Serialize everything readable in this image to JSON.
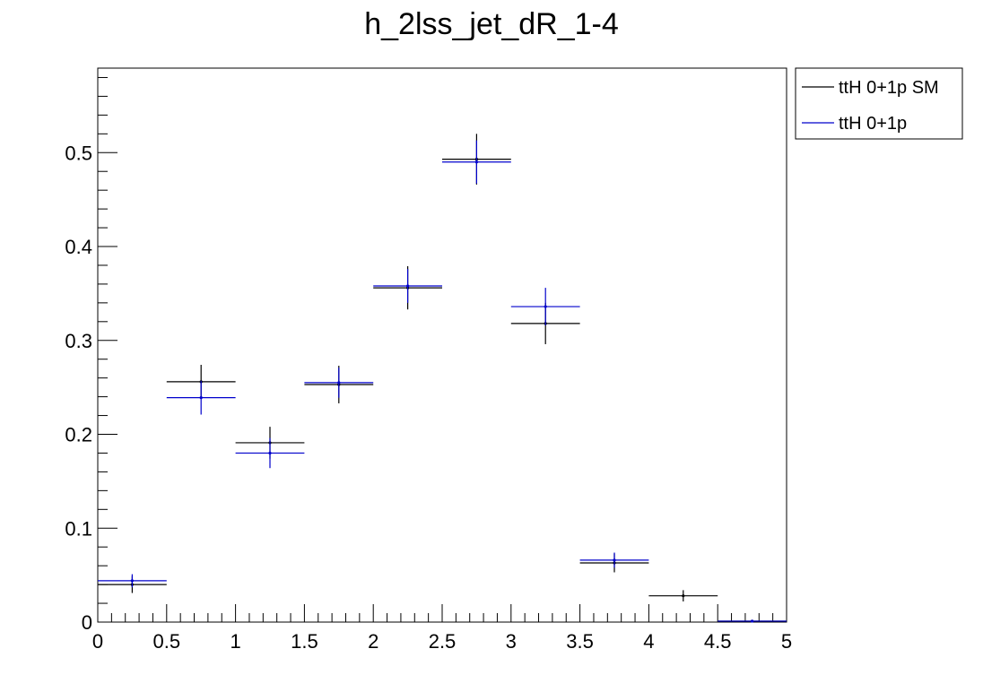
{
  "chart_data": {
    "type": "scatter",
    "title": "h_2lss_jet_dR_1-4",
    "xlabel": "",
    "ylabel": "",
    "xlim": [
      0,
      5
    ],
    "ylim": [
      0,
      0.59
    ],
    "x_major_ticks": [
      0,
      0.5,
      1,
      1.5,
      2,
      2.5,
      3,
      3.5,
      4,
      4.5,
      5
    ],
    "x_tick_labels": [
      "0",
      "0.5",
      "1",
      "1.5",
      "2",
      "2.5",
      "3",
      "3.5",
      "4",
      "4.5",
      "5"
    ],
    "y_major_ticks": [
      0,
      0.1,
      0.2,
      0.3,
      0.4,
      0.5
    ],
    "y_tick_labels": [
      "0",
      "0.1",
      "0.2",
      "0.3",
      "0.4",
      "0.5"
    ],
    "bin_width": 0.5,
    "grid": false,
    "legend_position": "top-right, outside plot",
    "series": [
      {
        "name": "ttH 0+1p SM",
        "color": "#000000",
        "x": [
          0.25,
          0.75,
          1.25,
          1.75,
          2.25,
          2.75,
          3.25,
          3.75,
          4.25,
          4.75
        ],
        "values": [
          0.04,
          0.256,
          0.191,
          0.253,
          0.356,
          0.493,
          0.318,
          0.063,
          0.028,
          0.001
        ],
        "errors": [
          0.009,
          0.018,
          0.017,
          0.02,
          0.023,
          0.027,
          0.022,
          0.01,
          0.006,
          0.001
        ]
      },
      {
        "name": "ttH 0+1p",
        "color": "#0000cc",
        "x": [
          0.25,
          0.75,
          1.25,
          1.75,
          2.25,
          2.75,
          3.25,
          3.75,
          4.25,
          4.75
        ],
        "values": [
          0.044,
          0.239,
          0.18,
          0.255,
          0.358,
          0.49,
          0.336,
          0.066,
          0.0,
          0.001
        ],
        "errors": [
          0.007,
          0.018,
          0.016,
          0.016,
          0.018,
          0.023,
          0.02,
          0.008,
          0.0,
          0.001
        ]
      }
    ]
  }
}
